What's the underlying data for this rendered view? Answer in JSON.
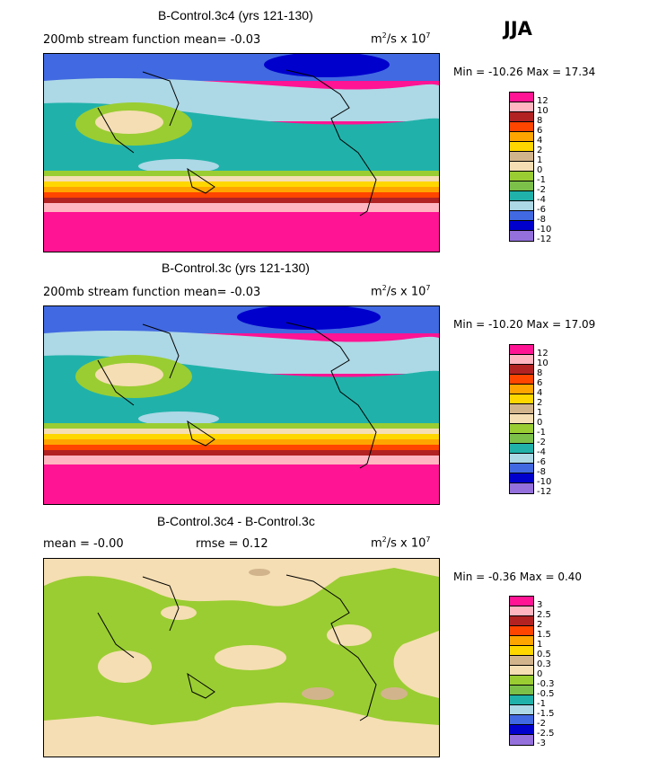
{
  "season": "JJA",
  "panels": [
    {
      "title": "B-Control.3c4 (yrs 121-130)",
      "left_text": "200mb stream function  mean=  -0.03",
      "units_base": "m",
      "units_rest": "/s x 10",
      "min_label": "Min = -10.26 Max =  17.34",
      "colorbar": [
        "12",
        "10",
        "8",
        "6",
        "4",
        "2",
        "1",
        "0",
        "-1",
        "-2",
        "-4",
        "-6",
        "-8",
        "-10",
        "-12"
      ]
    },
    {
      "title": "B-Control.3c (yrs 121-130)",
      "left_text": "200mb stream function  mean=  -0.03",
      "units_base": "m",
      "units_rest": "/s x 10",
      "min_label": "Min = -10.20 Max =  17.09",
      "colorbar": [
        "12",
        "10",
        "8",
        "6",
        "4",
        "2",
        "1",
        "0",
        "-1",
        "-2",
        "-4",
        "-6",
        "-8",
        "-10",
        "-12"
      ]
    },
    {
      "title": "B-Control.3c4 - B-Control.3c",
      "left_text": "mean =  -0.00",
      "rmse_text": "rmse =   0.12",
      "units_base": "m",
      "units_rest": "/s x 10",
      "min_label": "Min = -0.36 Max =   0.40",
      "colorbar": [
        "3",
        "2.5",
        "2",
        "1.5",
        "1",
        "0.5",
        "0.3",
        "0",
        "-0.3",
        "-0.5",
        "-1",
        "-1.5",
        "-2",
        "-2.5",
        "-3"
      ]
    }
  ],
  "colors": {
    "scale": [
      "#ff1493",
      "#ffb6c1",
      "#b22222",
      "#ff4500",
      "#ffa500",
      "#ffd700",
      "#d2b48c",
      "#f5deb3",
      "#9acd32",
      "#7cc04a",
      "#20b2aa",
      "#add8e6",
      "#4169e1",
      "#0000cd",
      "#9370db"
    ]
  }
}
